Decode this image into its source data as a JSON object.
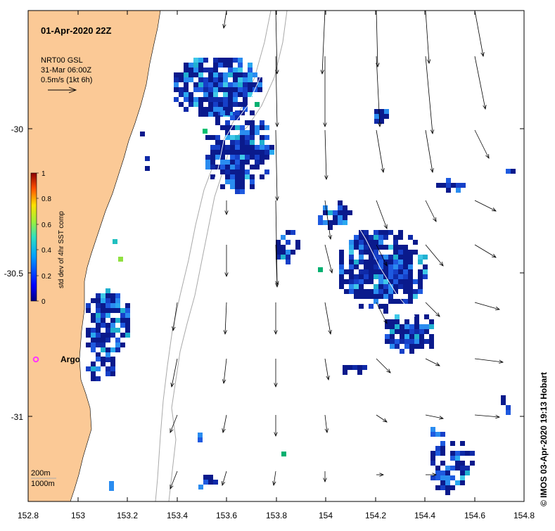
{
  "map": {
    "date_label": "01-Apr-2020 22Z",
    "current_legend": {
      "source": "NRT00 GSL",
      "time": "31-Mar 06:00Z",
      "scale": "0.5m/s (1kt 6h)"
    },
    "colorbar": {
      "label": "std dev of 4hr SST comp",
      "ticks": [
        "1",
        "0.8",
        "0.6",
        "0.4",
        "0.2",
        "0"
      ]
    },
    "axes": {
      "lon_ticks": [
        "152.8",
        "153",
        "153.2",
        "153.4",
        "153.6",
        "153.8",
        "154",
        "154.2",
        "154.4",
        "154.6",
        "154.8"
      ],
      "lat_ticks": [
        "-30",
        "-30.5",
        "-31"
      ]
    },
    "float_label": "Argo",
    "depth_legend": [
      "200m",
      "1000m"
    ],
    "credit": "© IMOS 03-Apr-2020 19:13 Hobart",
    "colors": {
      "land": "#fbc996",
      "sst_low": "#0a1a8c",
      "argo": "#ff33ff",
      "isobath": "#a9a9a9"
    }
  }
}
